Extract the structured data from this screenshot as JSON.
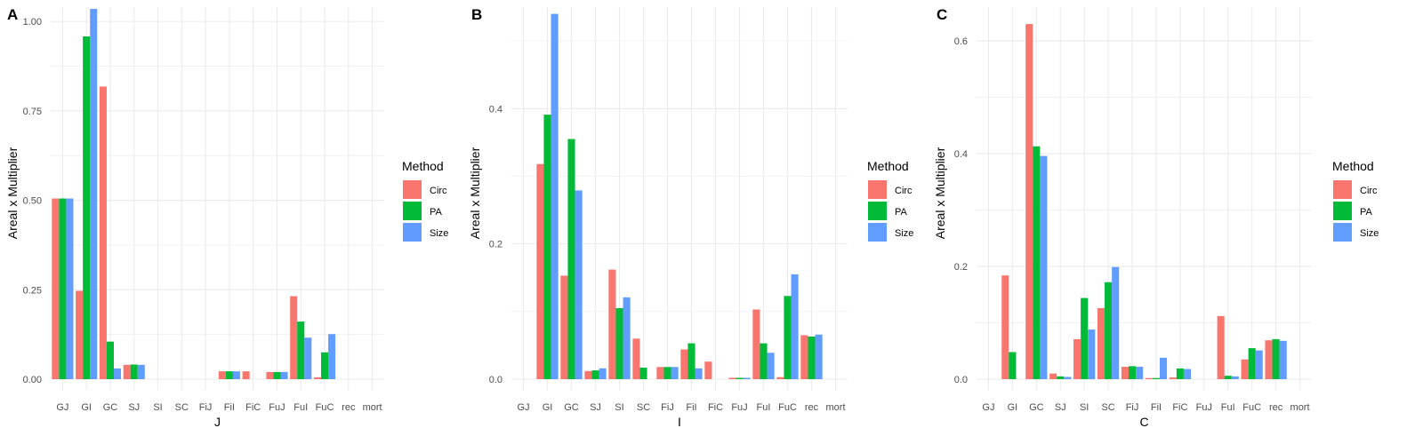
{
  "chart_data": [
    {
      "type": "bar",
      "panel": "A",
      "xlabel": "J",
      "ylabel": "Areal x Multiplier",
      "ylim": [
        0,
        1.04
      ],
      "yticks": [
        0.0,
        0.25,
        0.5,
        0.75,
        1.0
      ],
      "ytick_labels": [
        "0.00",
        "0.25",
        "0.50",
        "0.75",
        "1.00"
      ],
      "categories": [
        "GJ",
        "GI",
        "GC",
        "SJ",
        "SI",
        "SC",
        "FiJ",
        "FiI",
        "FiC",
        "FuJ",
        "FuI",
        "FuC",
        "rec",
        "mort"
      ],
      "series": [
        {
          "name": "Circ",
          "values": [
            0.505,
            0.247,
            0.818,
            0.04,
            0,
            0,
            0,
            0.022,
            0.022,
            0.02,
            0.232,
            0.005,
            0,
            0
          ]
        },
        {
          "name": "PA",
          "values": [
            0.505,
            0.958,
            0.105,
            0.041,
            0,
            0,
            0,
            0.022,
            0,
            0.02,
            0.161,
            0.075,
            0,
            0
          ]
        },
        {
          "name": "Size",
          "values": [
            0.505,
            1.035,
            0.03,
            0.04,
            0,
            0,
            0,
            0.022,
            0,
            0.02,
            0.116,
            0.126,
            0,
            0
          ]
        }
      ],
      "legend": {
        "title": "Method",
        "position": "right"
      },
      "grid": true
    },
    {
      "type": "bar",
      "panel": "B",
      "xlabel": "I",
      "ylabel": "Areal x Multiplier",
      "ylim": [
        0,
        0.55
      ],
      "yticks": [
        0.0,
        0.2,
        0.4
      ],
      "ytick_labels": [
        "0.0",
        "0.2",
        "0.4"
      ],
      "categories": [
        "GJ",
        "GI",
        "GC",
        "SJ",
        "SI",
        "SC",
        "FiJ",
        "FiI",
        "FiC",
        "FuJ",
        "FuI",
        "FuC",
        "rec",
        "mort"
      ],
      "series": [
        {
          "name": "Circ",
          "values": [
            0,
            0.318,
            0.153,
            0.012,
            0.162,
            0.06,
            0.018,
            0.044,
            0.026,
            0.002,
            0.103,
            0.003,
            0.065,
            0
          ]
        },
        {
          "name": "PA",
          "values": [
            0,
            0.391,
            0.355,
            0.013,
            0.105,
            0.017,
            0.018,
            0.053,
            0,
            0.002,
            0.053,
            0.123,
            0.063,
            0
          ]
        },
        {
          "name": "Size",
          "values": [
            0,
            0.54,
            0.279,
            0.016,
            0.121,
            0,
            0.018,
            0.016,
            0,
            0.002,
            0.039,
            0.155,
            0.066,
            0
          ]
        }
      ],
      "legend": {
        "title": "Method",
        "position": "right"
      },
      "grid": true
    },
    {
      "type": "bar",
      "panel": "C",
      "xlabel": "C",
      "ylabel": "Areal x Multiplier",
      "ylim": [
        0,
        0.66
      ],
      "yticks": [
        0.0,
        0.2,
        0.4,
        0.6
      ],
      "ytick_labels": [
        "0.0",
        "0.2",
        "0.4",
        "0.6"
      ],
      "categories": [
        "GJ",
        "GI",
        "GC",
        "SJ",
        "SI",
        "SC",
        "FiJ",
        "FiI",
        "FiC",
        "FuJ",
        "FuI",
        "FuC",
        "rec",
        "mort"
      ],
      "series": [
        {
          "name": "Circ",
          "values": [
            0,
            0.184,
            0.63,
            0.01,
            0.071,
            0.126,
            0.022,
            0.002,
            0.003,
            0,
            0.112,
            0.035,
            0.069,
            0
          ]
        },
        {
          "name": "PA",
          "values": [
            0,
            0.048,
            0.413,
            0.005,
            0.144,
            0.172,
            0.023,
            0.002,
            0.019,
            0,
            0.006,
            0.055,
            0.071,
            0
          ]
        },
        {
          "name": "Size",
          "values": [
            0,
            0,
            0.396,
            0.004,
            0.088,
            0.199,
            0.022,
            0.038,
            0.018,
            0,
            0.005,
            0.051,
            0.068,
            0
          ]
        }
      ],
      "legend": {
        "title": "Method",
        "position": "right"
      },
      "grid": true
    }
  ],
  "colors": {
    "Circ": "#f8766d",
    "PA": "#00ba38",
    "Size": "#619cff",
    "grid": "#ebebeb"
  }
}
